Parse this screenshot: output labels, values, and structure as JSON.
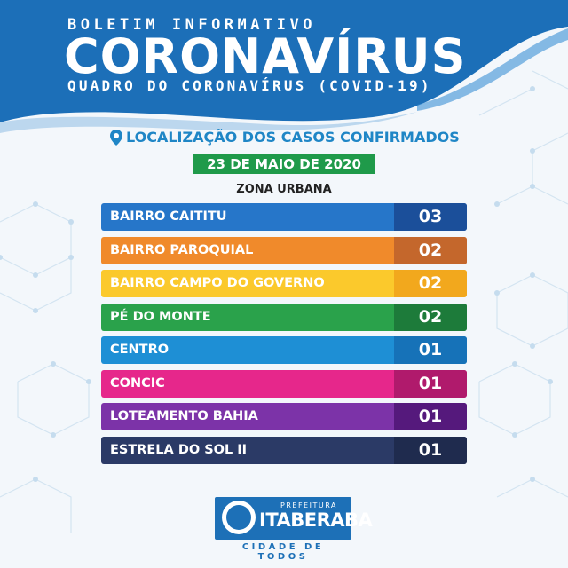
{
  "header": {
    "kicker": "BOLETIM INFORMATIVO",
    "title": "CORONAVÍRUS",
    "subtitle": "QUADRO DO CORONAVÍRUS (COVID-19)"
  },
  "location_title": "LOCALIZAÇÃO DOS CASOS CONFIRMADOS",
  "date": "23 DE MAIO DE 2020",
  "zone": "ZONA URBANA",
  "rows": [
    {
      "name": "BAIRRO CAITITU",
      "value": "03",
      "color": "#2676c9",
      "dark": "#1b4f9a"
    },
    {
      "name": "BAIRRO PAROQUIAL",
      "value": "02",
      "color": "#f08a2b",
      "dark": "#c4672c"
    },
    {
      "name": "BAIRRO CAMPO DO GOVERNO",
      "value": "02",
      "color": "#fbc92c",
      "dark": "#f2a81d"
    },
    {
      "name": "PÉ DO MONTE",
      "value": "02",
      "color": "#2aa24b",
      "dark": "#1d7b3a"
    },
    {
      "name": "CENTRO",
      "value": "01",
      "color": "#1e8fd5",
      "dark": "#1672b8"
    },
    {
      "name": "CONCIC",
      "value": "01",
      "color": "#e6278b",
      "dark": "#b01a6c"
    },
    {
      "name": "LOTEAMENTO BAHIA",
      "value": "01",
      "color": "#7c33a8",
      "dark": "#55197c"
    },
    {
      "name": "ESTRELA DO SOL II",
      "value": "01",
      "color": "#2b3a66",
      "dark": "#1f2b4e"
    }
  ],
  "logo": {
    "prefix": "PREFEITURA",
    "city": "ITABERABA",
    "tagline": "CIDADE DE TODOS"
  }
}
